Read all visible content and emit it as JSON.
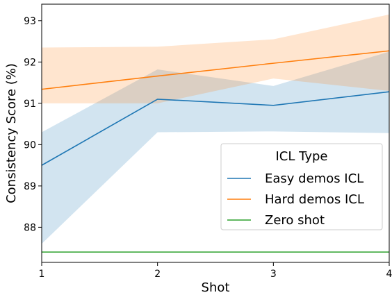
{
  "chart_data": {
    "type": "line",
    "title": "",
    "xlabel": "Shot",
    "ylabel": "Consistency Score (%)",
    "x": [
      1,
      2,
      3,
      4
    ],
    "xlim": [
      1,
      4
    ],
    "ylim": [
      87.15,
      93.4
    ],
    "x_ticks": [
      "1",
      "2",
      "3",
      "4"
    ],
    "y_ticks": [
      "88",
      "89",
      "90",
      "91",
      "92",
      "93"
    ],
    "grid": false,
    "legend": {
      "title": "ICL Type",
      "placement": "lower-right"
    },
    "series": [
      {
        "name": "Easy demos ICL",
        "color": "#1f77b4",
        "values": [
          89.5,
          91.1,
          90.95,
          91.28
        ],
        "lower": [
          87.6,
          90.3,
          90.32,
          90.28
        ],
        "upper": [
          90.3,
          91.82,
          91.42,
          92.25
        ]
      },
      {
        "name": "Hard demos ICL",
        "color": "#ff7f0e",
        "values": [
          91.34,
          91.66,
          91.97,
          92.27
        ],
        "lower": [
          91.0,
          91.0,
          91.6,
          91.3
        ],
        "upper": [
          92.35,
          92.37,
          92.55,
          93.15
        ]
      },
      {
        "name": "Zero shot",
        "color": "#2ca02c",
        "values": [
          87.4,
          87.4,
          87.4,
          87.4
        ]
      }
    ]
  }
}
